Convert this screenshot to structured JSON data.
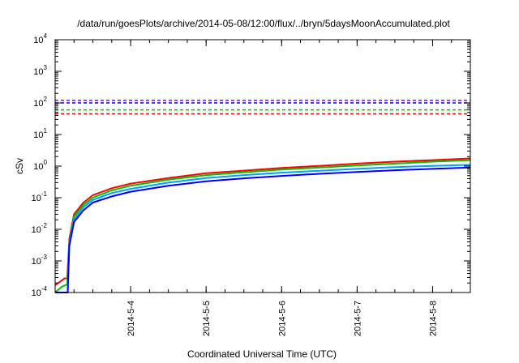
{
  "chart_data": {
    "type": "line",
    "title": "/data/run/goesPlots/archive/2014-05-08/12:00/flux/../bryn/5daysMoonAccumulated.plot",
    "xlabel": "Coordinated Universal Time (UTC)",
    "ylabel": "cSv",
    "y_scale": "log",
    "ylim": [
      0.0001,
      10000
    ],
    "xlim": [
      "2014-05-03 00:00",
      "2014-05-08 12:00"
    ],
    "y_ticks": [
      {
        "base": "10",
        "exp": "-4",
        "value": 0.0001
      },
      {
        "base": "10",
        "exp": "-3",
        "value": 0.001
      },
      {
        "base": "10",
        "exp": "-2",
        "value": 0.01
      },
      {
        "base": "10",
        "exp": "-1",
        "value": 0.1
      },
      {
        "base": "10",
        "exp": "0",
        "value": 1
      },
      {
        "base": "10",
        "exp": "1",
        "value": 10
      },
      {
        "base": "10",
        "exp": "2",
        "value": 100
      },
      {
        "base": "10",
        "exp": "3",
        "value": 1000
      },
      {
        "base": "10",
        "exp": "4",
        "value": 10000
      }
    ],
    "x_ticks": [
      {
        "label": "2014-5-4",
        "value": "2014-05-04 00:00"
      },
      {
        "label": "2014-5-5",
        "value": "2014-05-05 00:00"
      },
      {
        "label": "2014-5-6",
        "value": "2014-05-06 00:00"
      },
      {
        "label": "2014-5-7",
        "value": "2014-05-07 00:00"
      },
      {
        "label": "2014-5-8",
        "value": "2014-05-08 00:00"
      }
    ],
    "grid": false,
    "legend": "none",
    "thresholds": [
      {
        "color": "#9400d3",
        "value": 120
      },
      {
        "color": "#0000ff",
        "value": 100
      },
      {
        "color": "#00c000",
        "value": 60
      },
      {
        "color": "#ff0000",
        "value": 45
      }
    ],
    "series": [
      {
        "color": "#ff0000",
        "points": [
          [
            "2014-05-03 00:00",
            0.00017
          ],
          [
            "2014-05-03 03:00",
            0.00028
          ],
          [
            "2014-05-03 03:50",
            0.00028
          ],
          [
            "2014-05-03 04:30",
            0.005
          ],
          [
            "2014-05-03 06:00",
            0.03
          ],
          [
            "2014-05-03 09:00",
            0.07
          ],
          [
            "2014-05-03 12:00",
            0.12
          ],
          [
            "2014-05-03 18:00",
            0.2
          ],
          [
            "2014-05-04 00:00",
            0.28
          ],
          [
            "2014-05-04 12:00",
            0.42
          ],
          [
            "2014-05-05 00:00",
            0.6
          ],
          [
            "2014-05-05 12:00",
            0.72
          ],
          [
            "2014-05-06 00:00",
            0.88
          ],
          [
            "2014-05-06 12:00",
            1.02
          ],
          [
            "2014-05-07 00:00",
            1.2
          ],
          [
            "2014-05-07 12:00",
            1.38
          ],
          [
            "2014-05-08 00:00",
            1.55
          ],
          [
            "2014-05-08 12:00",
            1.75
          ]
        ]
      },
      {
        "color": "#00c000",
        "points": [
          [
            "2014-05-03 00:00",
            0.0001
          ],
          [
            "2014-05-03 02:00",
            0.00015
          ],
          [
            "2014-05-03 03:50",
            0.00018
          ],
          [
            "2014-05-03 04:30",
            0.004
          ],
          [
            "2014-05-03 06:00",
            0.025
          ],
          [
            "2014-05-03 09:00",
            0.06
          ],
          [
            "2014-05-03 12:00",
            0.1
          ],
          [
            "2014-05-03 18:00",
            0.17
          ],
          [
            "2014-05-04 00:00",
            0.24
          ],
          [
            "2014-05-04 12:00",
            0.37
          ],
          [
            "2014-05-05 00:00",
            0.52
          ],
          [
            "2014-05-05 12:00",
            0.64
          ],
          [
            "2014-05-06 00:00",
            0.78
          ],
          [
            "2014-05-06 12:00",
            0.9
          ],
          [
            "2014-05-07 00:00",
            1.05
          ],
          [
            "2014-05-07 12:00",
            1.2
          ],
          [
            "2014-05-08 00:00",
            1.38
          ],
          [
            "2014-05-08 12:00",
            1.55
          ]
        ]
      },
      {
        "color": "#00a0ff",
        "points": [
          [
            "2014-05-03 00:00",
            0.0001
          ],
          [
            "2014-05-03 03:00",
            0.0001
          ],
          [
            "2014-05-03 04:00",
            0.0001
          ],
          [
            "2014-05-03 04:30",
            0.0035
          ],
          [
            "2014-05-03 06:00",
            0.02
          ],
          [
            "2014-05-03 09:00",
            0.05
          ],
          [
            "2014-05-03 12:00",
            0.085
          ],
          [
            "2014-05-03 18:00",
            0.14
          ],
          [
            "2014-05-04 00:00",
            0.19
          ],
          [
            "2014-05-04 12:00",
            0.3
          ],
          [
            "2014-05-05 00:00",
            0.42
          ],
          [
            "2014-05-05 12:00",
            0.52
          ],
          [
            "2014-05-06 00:00",
            0.62
          ],
          [
            "2014-05-06 12:00",
            0.71
          ],
          [
            "2014-05-07 00:00",
            0.82
          ],
          [
            "2014-05-07 12:00",
            0.93
          ],
          [
            "2014-05-08 00:00",
            1.02
          ],
          [
            "2014-05-08 12:00",
            1.1
          ]
        ]
      },
      {
        "color": "#0000ff",
        "points": [
          [
            "2014-05-03 00:00",
            0.0001
          ],
          [
            "2014-05-03 03:00",
            0.0001
          ],
          [
            "2014-05-03 04:00",
            0.0001
          ],
          [
            "2014-05-03 04:30",
            0.003
          ],
          [
            "2014-05-03 06:00",
            0.017
          ],
          [
            "2014-05-03 09:00",
            0.04
          ],
          [
            "2014-05-03 12:00",
            0.07
          ],
          [
            "2014-05-03 18:00",
            0.11
          ],
          [
            "2014-05-04 00:00",
            0.155
          ],
          [
            "2014-05-04 12:00",
            0.24
          ],
          [
            "2014-05-05 00:00",
            0.33
          ],
          [
            "2014-05-05 12:00",
            0.41
          ],
          [
            "2014-05-06 00:00",
            0.49
          ],
          [
            "2014-05-06 12:00",
            0.57
          ],
          [
            "2014-05-07 00:00",
            0.65
          ],
          [
            "2014-05-07 12:00",
            0.74
          ],
          [
            "2014-05-08 00:00",
            0.82
          ],
          [
            "2014-05-08 12:00",
            0.9
          ]
        ]
      }
    ]
  }
}
